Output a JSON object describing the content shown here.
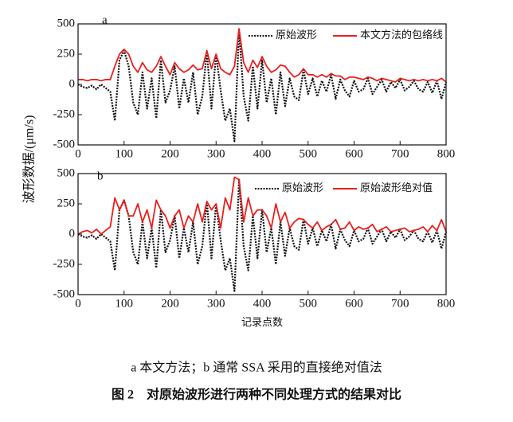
{
  "chart_data": [
    {
      "type": "line",
      "panel": "a",
      "ylabel": "波形数据/(μm/s)",
      "x": [
        0,
        10,
        20,
        30,
        40,
        50,
        60,
        70,
        80,
        90,
        100,
        110,
        120,
        130,
        140,
        150,
        160,
        170,
        180,
        190,
        200,
        210,
        220,
        230,
        240,
        250,
        260,
        270,
        280,
        290,
        300,
        310,
        320,
        330,
        340,
        350,
        360,
        370,
        380,
        390,
        400,
        410,
        420,
        430,
        440,
        450,
        460,
        470,
        480,
        490,
        500,
        510,
        520,
        530,
        540,
        550,
        560,
        570,
        580,
        590,
        600,
        610,
        620,
        630,
        640,
        650,
        660,
        670,
        680,
        690,
        700,
        710,
        720,
        730,
        740,
        750,
        760,
        770,
        780,
        790,
        800
      ],
      "series": [
        {
          "name": "原始波形",
          "color": "#111111",
          "style": "dotted",
          "values": [
            0,
            -20,
            -30,
            -10,
            -40,
            0,
            -30,
            -60,
            -300,
            200,
            280,
            150,
            -150,
            -250,
            100,
            -200,
            50,
            -280,
            200,
            -150,
            -50,
            150,
            -200,
            50,
            -150,
            100,
            -250,
            -100,
            270,
            -200,
            250,
            -50,
            -300,
            -200,
            -470,
            450,
            -100,
            -300,
            150,
            -200,
            200,
            -150,
            50,
            -250,
            100,
            -180,
            50,
            -100,
            -130,
            120,
            -80,
            50,
            -100,
            30,
            -60,
            80,
            -120,
            40,
            -50,
            -100,
            30,
            -60,
            -40,
            50,
            -80,
            -20,
            40,
            -60,
            20,
            -30,
            40,
            -50,
            -20,
            30,
            -40,
            -60,
            20,
            -70,
            30,
            -120,
            20
          ]
        },
        {
          "name": "本文方法的包络线",
          "color": "#e8201e",
          "style": "solid",
          "values": [
            40,
            40,
            30,
            40,
            40,
            30,
            40,
            40,
            150,
            250,
            290,
            250,
            150,
            100,
            180,
            120,
            100,
            150,
            230,
            150,
            80,
            180,
            130,
            100,
            120,
            160,
            120,
            130,
            280,
            130,
            250,
            130,
            100,
            80,
            150,
            460,
            180,
            100,
            200,
            140,
            230,
            150,
            100,
            120,
            160,
            150,
            100,
            60,
            80,
            130,
            80,
            80,
            60,
            80,
            60,
            90,
            70,
            70,
            40,
            60,
            60,
            50,
            40,
            60,
            50,
            30,
            50,
            40,
            30,
            20,
            50,
            40,
            30,
            40,
            30,
            40,
            30,
            40,
            30,
            50,
            20
          ]
        }
      ],
      "xlim": [
        0,
        800
      ],
      "ylim": [
        -500,
        500
      ],
      "xticks": [
        0,
        100,
        200,
        300,
        400,
        500,
        600,
        700,
        800
      ],
      "yticks": [
        -500,
        -250,
        0,
        250,
        500
      ]
    },
    {
      "type": "line",
      "panel": "b",
      "xlabel": "记录点数",
      "x": [
        0,
        10,
        20,
        30,
        40,
        50,
        60,
        70,
        80,
        90,
        100,
        110,
        120,
        130,
        140,
        150,
        160,
        170,
        180,
        190,
        200,
        210,
        220,
        230,
        240,
        250,
        260,
        270,
        280,
        290,
        300,
        310,
        320,
        330,
        340,
        350,
        360,
        370,
        380,
        390,
        400,
        410,
        420,
        430,
        440,
        450,
        460,
        470,
        480,
        490,
        500,
        510,
        520,
        530,
        540,
        550,
        560,
        570,
        580,
        590,
        600,
        610,
        620,
        630,
        640,
        650,
        660,
        670,
        680,
        690,
        700,
        710,
        720,
        730,
        740,
        750,
        760,
        770,
        780,
        790,
        800
      ],
      "series": [
        {
          "name": "原始波形",
          "color": "#111111",
          "style": "dotted",
          "values": [
            0,
            -20,
            -30,
            -10,
            -40,
            0,
            -30,
            -60,
            -300,
            200,
            280,
            150,
            -150,
            -250,
            100,
            -200,
            50,
            -280,
            200,
            -150,
            -50,
            150,
            -200,
            50,
            -150,
            100,
            -250,
            -100,
            270,
            -200,
            250,
            -50,
            -300,
            -200,
            -470,
            450,
            -100,
            -300,
            150,
            -200,
            200,
            -150,
            50,
            -250,
            100,
            -180,
            50,
            -100,
            -130,
            120,
            -80,
            50,
            -100,
            30,
            -60,
            80,
            -120,
            40,
            -50,
            -100,
            30,
            -60,
            -40,
            50,
            -80,
            -20,
            40,
            -60,
            20,
            -30,
            40,
            -50,
            -20,
            30,
            -40,
            -60,
            20,
            -70,
            30,
            -120,
            20
          ]
        },
        {
          "name": "原始波形绝对值",
          "color": "#e8201e",
          "style": "solid",
          "values": [
            0,
            20,
            30,
            10,
            40,
            0,
            30,
            60,
            300,
            200,
            280,
            150,
            150,
            250,
            100,
            200,
            50,
            280,
            200,
            150,
            50,
            150,
            200,
            50,
            150,
            100,
            250,
            100,
            270,
            200,
            250,
            50,
            300,
            200,
            470,
            450,
            100,
            300,
            150,
            200,
            200,
            150,
            50,
            250,
            100,
            180,
            50,
            100,
            130,
            120,
            80,
            50,
            100,
            30,
            60,
            80,
            120,
            40,
            50,
            100,
            30,
            60,
            40,
            50,
            80,
            20,
            40,
            60,
            20,
            30,
            40,
            50,
            20,
            30,
            40,
            60,
            20,
            70,
            30,
            120,
            20
          ]
        }
      ],
      "xlim": [
        0,
        800
      ],
      "ylim": [
        -500,
        500
      ],
      "xticks": [
        0,
        100,
        200,
        300,
        400,
        500,
        600,
        700,
        800
      ],
      "yticks": [
        -500,
        -250,
        0,
        250,
        500
      ]
    }
  ],
  "caption": "a 本文方法；b 通常 SSA 采用的直接绝对值法",
  "figure_title": "图 2　对原始波形进行两种不同处理方式的结果对比"
}
